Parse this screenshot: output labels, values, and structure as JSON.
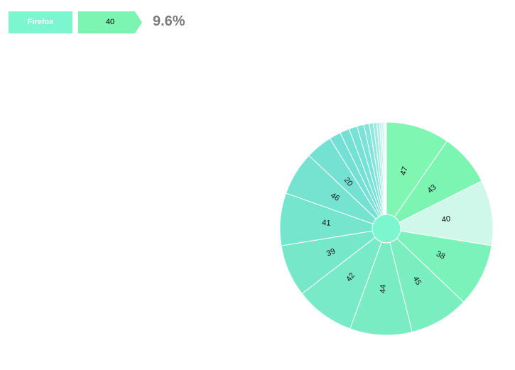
{
  "breadcrumb": {
    "browser": "Firefox",
    "version": "40",
    "percentage": "9.6%",
    "browser_color": "#7cf6cf",
    "version_color": "#7cf4b2"
  },
  "chart_data": {
    "type": "pie",
    "browser": "Firefox",
    "highlighted": "40",
    "slices": [
      {
        "label": "47",
        "value": 9.3,
        "color": "#7ff6b1"
      },
      {
        "label": "43",
        "value": 7.7,
        "color": "#7cf4b2"
      },
      {
        "label": "40",
        "value": 9.6,
        "color": "#cff8ea"
      },
      {
        "label": "38",
        "value": 9.2,
        "color": "#7bf2ba"
      },
      {
        "label": "45",
        "value": 8.7,
        "color": "#7aeebf"
      },
      {
        "label": "44",
        "value": 9.1,
        "color": "#79ecc3"
      },
      {
        "label": "42",
        "value": 8.7,
        "color": "#78eac7"
      },
      {
        "label": "39",
        "value": 7.6,
        "color": "#77e7ca"
      },
      {
        "label": "41",
        "value": 7.7,
        "color": "#76e5cd"
      },
      {
        "label": "46",
        "value": 6.4,
        "color": "#75e3d0"
      },
      {
        "label": "20",
        "value": 3.9,
        "color": "#74e1d3"
      },
      {
        "label": "",
        "value": 1.7,
        "color": "#73dfd5"
      },
      {
        "label": "",
        "value": 1.4,
        "color": "#74e0d6"
      },
      {
        "label": "",
        "value": 1.2,
        "color": "#75e1d7"
      },
      {
        "label": "",
        "value": 1.0,
        "color": "#7ae2d9"
      },
      {
        "label": "",
        "value": 0.8,
        "color": "#82e4da"
      },
      {
        "label": "",
        "value": 0.6,
        "color": "#8ee7dd"
      },
      {
        "label": "",
        "value": 0.5,
        "color": "#9beae1"
      },
      {
        "label": "",
        "value": 0.4,
        "color": "#a9ede6"
      },
      {
        "label": "",
        "value": 0.3,
        "color": "#b8f0ea"
      },
      {
        "label": "",
        "value": 0.3,
        "color": "#c6f3ee"
      },
      {
        "label": "",
        "value": 0.2,
        "color": "#d4f6f2"
      },
      {
        "label": "",
        "value": 0.2,
        "color": "#e2f9f6"
      }
    ],
    "center_color": "#7cf6cf"
  }
}
